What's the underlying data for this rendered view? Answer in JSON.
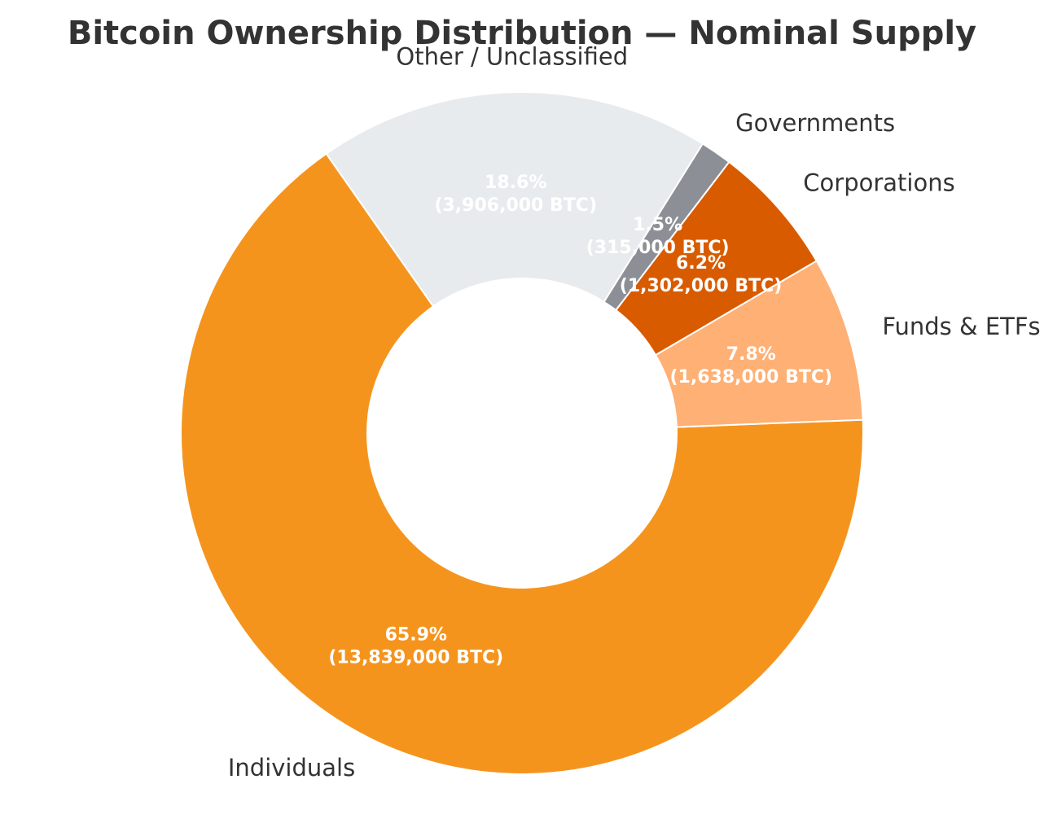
{
  "chart_data": {
    "type": "pie",
    "title": "Bitcoin Ownership Distribution — Nominal Supply",
    "donut": true,
    "start_angle_deg": 125,
    "direction": "counterclockwise",
    "slices": [
      {
        "label": "Individuals",
        "value": 13839000,
        "percent_label": "65.9%",
        "btc_label": "(13,839,000 BTC)",
        "color": "#F5941D"
      },
      {
        "label": "Funds & ETFs",
        "value": 1638000,
        "percent_label": "7.8%",
        "btc_label": "(1,638,000 BTC)",
        "color": "#FFB074"
      },
      {
        "label": "Corporations",
        "value": 1302000,
        "percent_label": "6.2%",
        "btc_label": "(1,302,000 BTC)",
        "color": "#D95B00"
      },
      {
        "label": "Governments",
        "value": 315000,
        "percent_label": "1.5%",
        "btc_label": "(315,000 BTC)",
        "color": "#8C9096"
      },
      {
        "label": "Other / Unclassified",
        "value": 3906000,
        "percent_label": "18.6%",
        "btc_label": "(3,906,000 BTC)",
        "color": "#E8EBED"
      }
    ]
  }
}
